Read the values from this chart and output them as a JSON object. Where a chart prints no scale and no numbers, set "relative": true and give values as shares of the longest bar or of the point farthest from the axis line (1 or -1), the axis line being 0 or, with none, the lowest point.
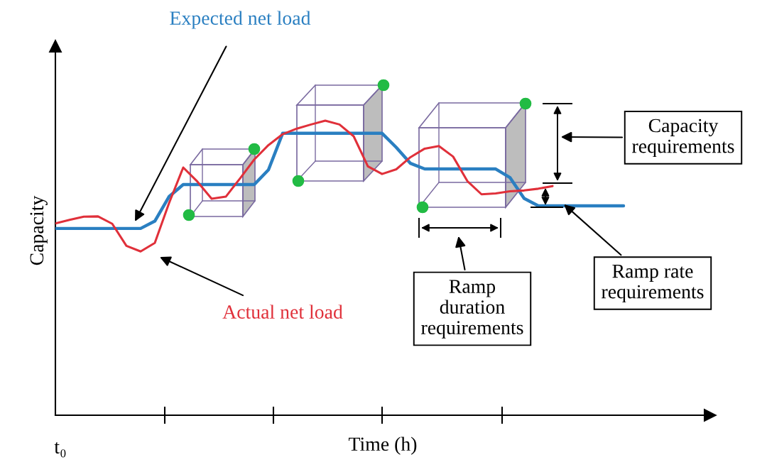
{
  "chart_data": {
    "type": "line",
    "relative": true,
    "xlabel": "Time (h)",
    "ylabel": "Capacity",
    "categories": [
      null,
      null,
      null,
      null,
      null,
      null,
      null,
      null,
      null,
      null,
      null,
      null,
      null,
      null,
      null,
      null,
      null,
      null,
      null,
      null,
      null,
      null,
      null,
      null,
      null,
      null,
      null,
      null,
      null,
      null,
      null,
      null,
      null,
      null,
      null,
      null,
      null,
      null,
      null,
      null,
      null
    ],
    "series": [
      {
        "name": "Expected net load",
        "color": "#2a7fc1",
        "values": [
          0.634,
          0.634,
          0.634,
          0.634,
          0.634,
          0.634,
          0.634,
          0.659,
          0.742,
          0.783,
          0.783,
          0.783,
          0.783,
          0.783,
          0.783,
          0.833,
          0.957,
          0.957,
          0.957,
          0.957,
          0.957,
          0.957,
          0.957,
          0.957,
          0.909,
          0.855,
          0.836,
          0.836,
          0.836,
          0.836,
          0.836,
          0.836,
          0.807,
          0.736,
          0.711,
          0.711,
          0.711,
          0.711,
          0.711,
          0.711,
          0.711
        ]
      },
      {
        "name": "Actual net load",
        "color": "#e0303a",
        "values": [
          0.651,
          0.663,
          0.674,
          0.675,
          0.65,
          0.575,
          0.556,
          0.585,
          0.72,
          0.841,
          0.793,
          0.735,
          0.742,
          0.804,
          0.868,
          0.917,
          0.954,
          0.973,
          0.987,
          1.0,
          0.987,
          0.947,
          0.845,
          0.819,
          0.835,
          0.876,
          0.905,
          0.914,
          0.878,
          0.795,
          0.75,
          0.753,
          0.76,
          0.763,
          0.769,
          0.778,
          null,
          null,
          null,
          null,
          null
        ]
      }
    ],
    "annotations": [
      "t₀",
      "Capacity\nrequirements",
      "Ramp\nduration\nrequirements",
      "Ramp rate\nrequirements"
    ]
  }
}
